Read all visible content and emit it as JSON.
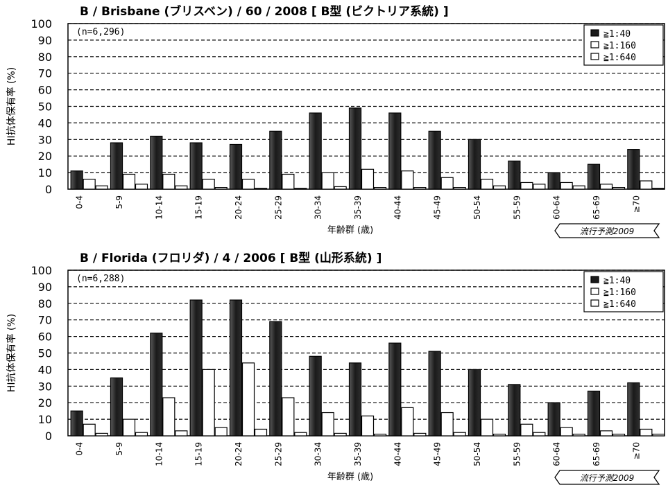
{
  "chart_data": [
    {
      "type": "bar",
      "title": "B / Brisbane (ブリスベン) / 60 / 2008 [ B型 (ビクトリア系統) ]",
      "sample": "(n=6,296)",
      "ylabel": "HI抗体保有率 (%)",
      "xlabel": "年齢群 (歳)",
      "forecast": "流行予測2009",
      "ylim": [
        0,
        100
      ],
      "yticks": [
        "0",
        "10",
        "20",
        "30",
        "40",
        "50",
        "60",
        "70",
        "80",
        "90",
        "100"
      ],
      "grid": true,
      "legend_position": "top-right",
      "categories": [
        "0-4",
        "5-9",
        "10-14",
        "15-19",
        "20-24",
        "25-29",
        "30-34",
        "35-39",
        "40-44",
        "45-49",
        "50-54",
        "55-59",
        "60-64",
        "65-69",
        "≥70"
      ],
      "series": [
        {
          "name": "≧1:40",
          "color": "#1a1a1a",
          "values": [
            11,
            28,
            32,
            28,
            27,
            35,
            46,
            49,
            46,
            35,
            30,
            17,
            10,
            15,
            24
          ]
        },
        {
          "name": "≧1:160",
          "color": "#ffffff",
          "values": [
            6,
            9,
            9,
            6,
            6,
            9,
            10,
            12,
            11,
            7,
            6,
            4,
            4,
            3,
            5
          ]
        },
        {
          "name": "≧1:640",
          "color": "#ffffff",
          "values": [
            2,
            3,
            2,
            1,
            0.5,
            0.5,
            1.5,
            1,
            1,
            1,
            2,
            3,
            2,
            1,
            0.5
          ]
        }
      ]
    },
    {
      "type": "bar",
      "title": "B / Florida (フロリダ) / 4 / 2006 [ B型 (山形系統) ]",
      "sample": "(n=6,288)",
      "ylabel": "HI抗体保有率 (%)",
      "xlabel": "年齢群 (歳)",
      "forecast": "流行予測2009",
      "ylim": [
        0,
        100
      ],
      "yticks": [
        "0",
        "10",
        "20",
        "30",
        "40",
        "50",
        "60",
        "70",
        "80",
        "90",
        "100"
      ],
      "grid": true,
      "legend_position": "top-right",
      "categories": [
        "0-4",
        "5-9",
        "10-14",
        "15-19",
        "20-24",
        "25-29",
        "30-34",
        "35-39",
        "40-44",
        "45-49",
        "50-54",
        "55-59",
        "60-64",
        "65-69",
        "≥70"
      ],
      "series": [
        {
          "name": "≧1:40",
          "color": "#1a1a1a",
          "values": [
            15,
            35,
            62,
            82,
            82,
            69,
            48,
            44,
            56,
            51,
            40,
            31,
            20,
            27,
            32
          ]
        },
        {
          "name": "≧1:160",
          "color": "#ffffff",
          "values": [
            7,
            10,
            23,
            40,
            44,
            23,
            14,
            12,
            17,
            14,
            10,
            7,
            5,
            3,
            4
          ]
        },
        {
          "name": "≧1:640",
          "color": "#ffffff",
          "values": [
            1.5,
            2,
            3,
            5,
            4,
            2,
            1.5,
            1,
            1.5,
            2,
            1,
            2,
            1,
            1,
            1
          ]
        }
      ]
    }
  ]
}
